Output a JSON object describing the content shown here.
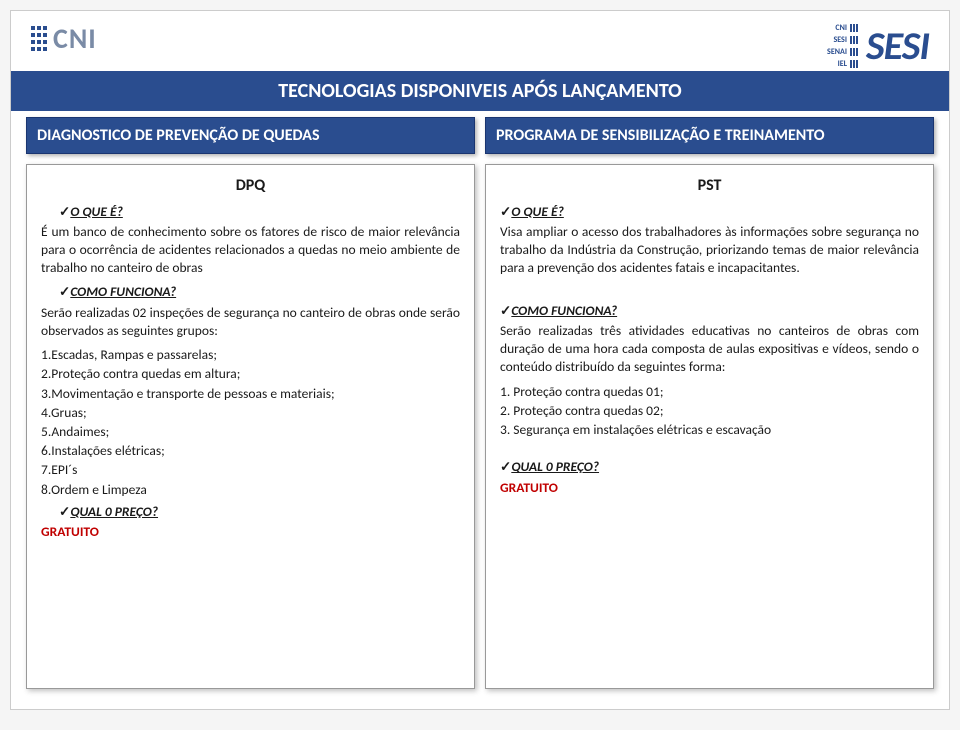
{
  "colors": {
    "brand_blue": "#2a4d8f",
    "brand_blue_dark": "#1a3570",
    "gratis_red": "#c00000",
    "logo_grey": "#7a8ba6",
    "page_bg": "#ffffff",
    "body_bg": "#f5f5f5",
    "text": "#1a1a1a",
    "border": "#999999"
  },
  "logos": {
    "left": "CNI",
    "right_main": "SESI",
    "right_labels": [
      "CNI",
      "SESI",
      "SENAI",
      "IEL"
    ]
  },
  "title": "TECNOLOGIAS DISPONIVEIS APÓS LANÇAMENTO",
  "subtitles": {
    "left": "DIAGNOSTICO DE PREVENÇÃO DE QUEDAS",
    "right": "PROGRAMA DE SENSIBILIZAÇÃO E TREINAMENTO"
  },
  "left": {
    "header": "DPQ",
    "q1": "O QUE É?",
    "p1": "É um banco de conhecimento sobre os fatores de risco de maior relevância para o ocorrência de acidentes relacionados a quedas no meio ambiente de trabalho no canteiro de obras",
    "q2": "COMO FUNCIONA?",
    "p2": "Serão realizadas 02 inspeções de segurança no canteiro de obras onde serão observados as seguintes grupos:",
    "items": [
      "1.Escadas, Rampas e passarelas;",
      "2.Proteção contra quedas em altura;",
      "3.Movimentação e transporte de pessoas e materiais;",
      "4.Gruas;",
      "5.Andaimes;",
      "6.Instalações elétricas;",
      "7.EPI´s",
      "8.Ordem e Limpeza"
    ],
    "q3": "QUAL 0 PREÇO?",
    "gratis": "GRATUITO"
  },
  "right": {
    "header": "PST",
    "q1": "O QUE É?",
    "p1": "Visa ampliar o acesso dos trabalhadores às informações sobre segurança no trabalho da Indústria da Construção, priorizando temas de maior relevância para a prevenção dos acidentes fatais e incapacitantes.",
    "q2": "COMO FUNCIONA?",
    "p2": "Serão realizadas três atividades educativas no canteiros de obras com duração de uma hora cada composta de aulas expositivas e vídeos, sendo o conteúdo distribuído da seguintes forma:",
    "items": [
      "1. Proteção contra quedas 01;",
      "2. Proteção contra quedas 02;",
      "3. Segurança em instalações elétricas e escavação"
    ],
    "q3": "QUAL 0 PREÇO?",
    "gratis": "GRATUITO"
  }
}
